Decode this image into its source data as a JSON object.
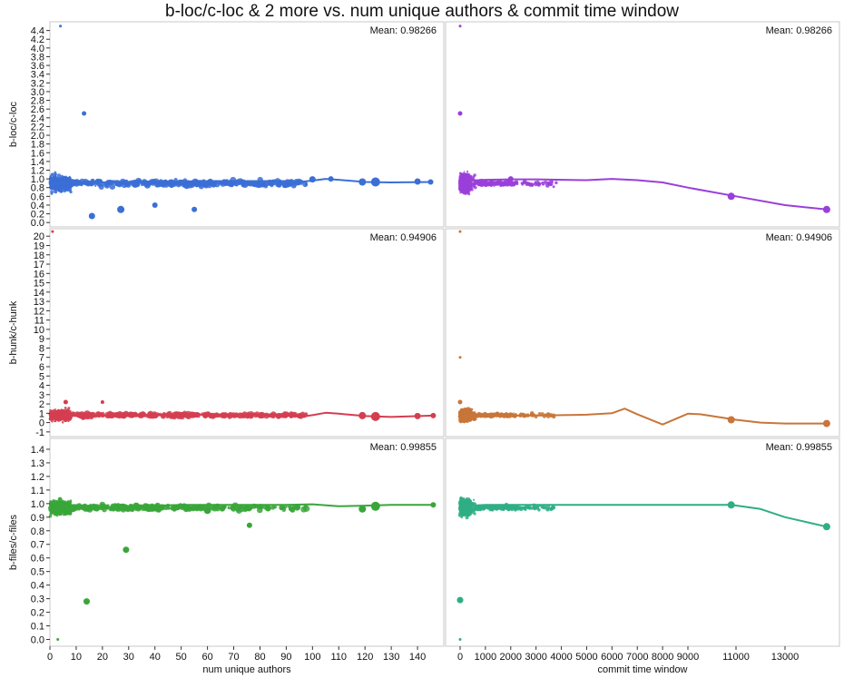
{
  "title": "b-loc/c-loc & 2 more vs. num unique authors & commit time window",
  "chart_data": {
    "type": "scatter",
    "title": "b-loc/c-loc & 2 more vs. num unique authors & commit time window",
    "x_axes": [
      {
        "label": "num unique authors",
        "range": [
          0,
          150
        ],
        "ticks": [
          "0",
          "10",
          "20",
          "30",
          "40",
          "50",
          "60",
          "70",
          "80",
          "90",
          "100",
          "110",
          "120",
          "130",
          "140"
        ],
        "tick_values": [
          0,
          10,
          20,
          30,
          40,
          50,
          60,
          70,
          80,
          90,
          100,
          110,
          120,
          130,
          140
        ]
      },
      {
        "label": "commit time window",
        "scale": "piecewise",
        "ticks": [
          "0",
          "1000",
          "2000",
          "3000",
          "4000",
          "5000",
          "6000",
          "7000",
          "8000",
          "9000",
          "11000",
          "13000"
        ],
        "tick_values": [
          0,
          1000,
          2000,
          3000,
          4000,
          5000,
          6000,
          7000,
          8000,
          9000,
          11000,
          13000
        ]
      }
    ],
    "y_axes": [
      {
        "label": "b-loc/c-loc",
        "range": [
          -0.1,
          4.6
        ],
        "ticks": [
          "0.0",
          "0.2",
          "0.4",
          "0.6",
          "0.8",
          "1.0",
          "1.2",
          "1.4",
          "1.6",
          "1.8",
          "2.0",
          "2.2",
          "2.4",
          "2.6",
          "2.8",
          "3.0",
          "3.2",
          "3.4",
          "3.6",
          "3.8",
          "4.0",
          "4.2",
          "4.4"
        ],
        "tick_values": [
          0,
          0.2,
          0.4,
          0.6,
          0.8,
          1.0,
          1.2,
          1.4,
          1.6,
          1.8,
          2.0,
          2.2,
          2.4,
          2.6,
          2.8,
          3.0,
          3.2,
          3.4,
          3.6,
          3.8,
          4.0,
          4.2,
          4.4
        ]
      },
      {
        "label": "b-hunk/c-hunk",
        "range": [
          -1.5,
          20.8
        ],
        "ticks": [
          "-1",
          "0",
          "1",
          "2",
          "3",
          "4",
          "5",
          "6",
          "7",
          "8",
          "9",
          "10",
          "11",
          "12",
          "13",
          "14",
          "15",
          "16",
          "17",
          "18",
          "19",
          "20"
        ],
        "tick_values": [
          -1,
          0,
          1,
          2,
          3,
          4,
          5,
          6,
          7,
          8,
          9,
          10,
          11,
          12,
          13,
          14,
          15,
          16,
          17,
          18,
          19,
          20
        ]
      },
      {
        "label": "b-files/c-files",
        "range": [
          -0.05,
          1.48
        ],
        "ticks": [
          "0.0",
          "0.1",
          "0.2",
          "0.3",
          "0.4",
          "0.5",
          "0.6",
          "0.7",
          "0.8",
          "0.9",
          "1.0",
          "1.1",
          "1.2",
          "1.3",
          "1.4"
        ],
        "tick_values": [
          0,
          0.1,
          0.2,
          0.3,
          0.4,
          0.5,
          0.6,
          0.7,
          0.8,
          0.9,
          1.0,
          1.1,
          1.2,
          1.3,
          1.4
        ]
      }
    ],
    "panels": [
      {
        "row": 0,
        "col": 0,
        "mean": "Mean: 0.98266",
        "color": "#3b6fd6",
        "smoother": {
          "x": [
            1,
            10,
            20,
            30,
            40,
            50,
            60,
            70,
            80,
            90,
            95,
            100,
            105,
            110,
            120,
            130,
            146
          ],
          "y": [
            0.88,
            0.9,
            0.92,
            0.93,
            0.94,
            0.94,
            0.95,
            0.95,
            0.95,
            0.95,
            0.93,
            0.96,
            1.0,
            0.98,
            0.93,
            0.92,
            0.93
          ]
        },
        "highlights": [
          {
            "x": 13,
            "y": 2.5,
            "s": 2.5
          },
          {
            "x": 4,
            "y": 4.5,
            "s": 1.5
          },
          {
            "x": 16,
            "y": 0.15,
            "s": 3.5
          },
          {
            "x": 27,
            "y": 0.3,
            "s": 4
          },
          {
            "x": 40,
            "y": 0.4,
            "s": 3
          },
          {
            "x": 55,
            "y": 0.3,
            "s": 3
          },
          {
            "x": 100,
            "y": 0.99,
            "s": 3.5
          },
          {
            "x": 107,
            "y": 1.0,
            "s": 3
          },
          {
            "x": 119,
            "y": 0.93,
            "s": 4
          },
          {
            "x": 124,
            "y": 0.93,
            "s": 5
          },
          {
            "x": 140,
            "y": 0.94,
            "s": 3.5
          },
          {
            "x": 145,
            "y": 0.93,
            "s": 3
          }
        ]
      },
      {
        "row": 0,
        "col": 1,
        "mean": "Mean: 0.98266",
        "color": "#9a3fd9",
        "smoother": {
          "x": [
            0,
            1000,
            2000,
            3000,
            5000,
            6000,
            7000,
            8000,
            9000,
            11000,
            13000,
            14700
          ],
          "y": [
            0.95,
            0.98,
            0.99,
            0.99,
            0.97,
            1.0,
            0.97,
            0.92,
            0.8,
            0.6,
            0.4,
            0.3
          ]
        },
        "highlights": [
          {
            "x": 0,
            "y": 4.5,
            "s": 1.5
          },
          {
            "x": 0,
            "y": 2.5,
            "s": 2.5
          },
          {
            "x": 2000,
            "y": 1.0,
            "s": 3
          },
          {
            "x": 10800,
            "y": 0.6,
            "s": 4
          },
          {
            "x": 14700,
            "y": 0.3,
            "s": 4
          }
        ]
      },
      {
        "row": 1,
        "col": 0,
        "mean": "Mean: 0.94906",
        "color": "#d43e50",
        "smoother": {
          "x": [
            1,
            10,
            20,
            30,
            40,
            50,
            60,
            70,
            80,
            90,
            95,
            100,
            105,
            110,
            120,
            130,
            146
          ],
          "y": [
            0.7,
            0.72,
            0.75,
            0.78,
            0.8,
            0.82,
            0.85,
            0.87,
            0.88,
            0.9,
            0.6,
            0.8,
            1.05,
            0.95,
            0.7,
            0.6,
            0.75
          ]
        },
        "highlights": [
          {
            "x": 1,
            "y": 20.5,
            "s": 1.5
          },
          {
            "x": 6,
            "y": 2.2,
            "s": 2.5
          },
          {
            "x": 20,
            "y": 2.2,
            "s": 2
          },
          {
            "x": 119,
            "y": 0.75,
            "s": 4
          },
          {
            "x": 124,
            "y": 0.65,
            "s": 5
          },
          {
            "x": 140,
            "y": 0.7,
            "s": 3.5
          },
          {
            "x": 146,
            "y": 0.75,
            "s": 3
          }
        ]
      },
      {
        "row": 1,
        "col": 1,
        "mean": "Mean: 0.94906",
        "color": "#c8763a",
        "smoother": {
          "x": [
            0,
            1000,
            2000,
            3000,
            4000,
            5000,
            6000,
            6500,
            7000,
            8000,
            9000,
            9500,
            10000,
            11000,
            12000,
            13000,
            14700
          ],
          "y": [
            0.7,
            0.72,
            0.75,
            0.75,
            0.8,
            0.85,
            1.0,
            1.5,
            0.9,
            -0.2,
            0.95,
            0.9,
            0.7,
            0.3,
            0.0,
            -0.1,
            -0.1
          ]
        },
        "highlights": [
          {
            "x": 0,
            "y": 20.5,
            "s": 1.5
          },
          {
            "x": 0,
            "y": 7,
            "s": 1.5
          },
          {
            "x": 0,
            "y": 2.2,
            "s": 2.5
          },
          {
            "x": 10800,
            "y": 0.3,
            "s": 4
          },
          {
            "x": 14700,
            "y": -0.1,
            "s": 4
          }
        ]
      },
      {
        "row": 2,
        "col": 0,
        "mean": "Mean: 0.99855",
        "color": "#3aa63a",
        "smoother": {
          "x": [
            1,
            10,
            20,
            30,
            40,
            50,
            60,
            70,
            80,
            90,
            100,
            110,
            120,
            130,
            146
          ],
          "y": [
            0.95,
            0.96,
            0.97,
            0.98,
            0.985,
            0.99,
            0.99,
            0.99,
            0.99,
            0.99,
            0.995,
            0.98,
            0.985,
            0.99,
            0.99
          ]
        },
        "highlights": [
          {
            "x": 3,
            "y": 0.0,
            "s": 1.5
          },
          {
            "x": 14,
            "y": 0.28,
            "s": 3.5
          },
          {
            "x": 29,
            "y": 0.66,
            "s": 3.5
          },
          {
            "x": 76,
            "y": 0.84,
            "s": 3
          },
          {
            "x": 60,
            "y": 0.95,
            "s": 4
          },
          {
            "x": 119,
            "y": 0.96,
            "s": 4
          },
          {
            "x": 124,
            "y": 0.98,
            "s": 5
          },
          {
            "x": 146,
            "y": 0.99,
            "s": 3
          }
        ]
      },
      {
        "row": 2,
        "col": 1,
        "mean": "Mean: 0.99855",
        "color": "#2fae85",
        "smoother": {
          "x": [
            0,
            1000,
            2000,
            3000,
            5000,
            7000,
            9000,
            10800,
            12000,
            13000,
            14700
          ],
          "y": [
            0.98,
            0.99,
            0.99,
            0.99,
            0.99,
            0.99,
            0.99,
            0.99,
            0.96,
            0.9,
            0.83
          ]
        },
        "highlights": [
          {
            "x": 0,
            "y": 0.0,
            "s": 1.5
          },
          {
            "x": 0,
            "y": 0.29,
            "s": 3.5
          },
          {
            "x": 10800,
            "y": 0.99,
            "s": 4
          },
          {
            "x": 14700,
            "y": 0.83,
            "s": 4
          }
        ]
      }
    ]
  }
}
